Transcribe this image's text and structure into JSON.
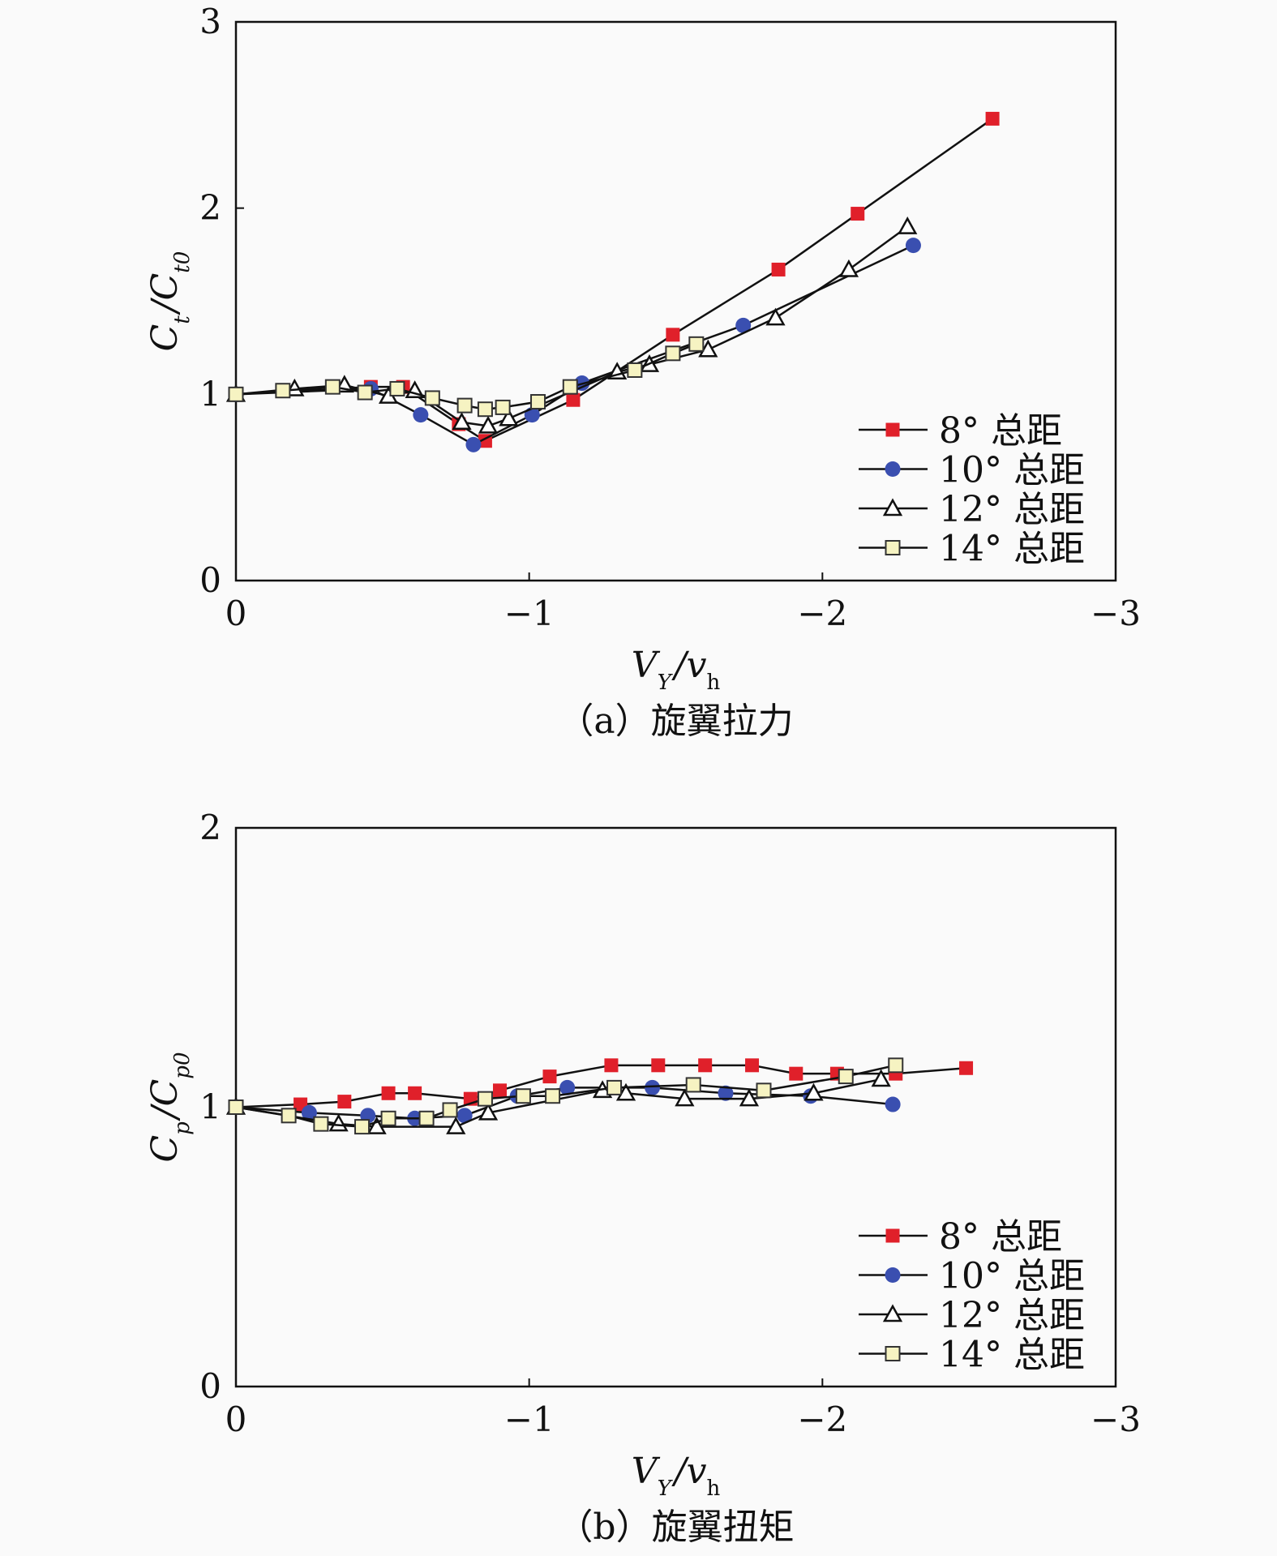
{
  "colors": {
    "s8": "#e0202a",
    "s10": "#3a4fb0",
    "s12": "#ffffff",
    "s14": "#f6f3c2",
    "axis": "#111111"
  },
  "chart_data": [
    {
      "type": "line",
      "caption": "（a）旋翼拉力",
      "xlabel": {
        "main": "V",
        "sub": "Y",
        "sep": "/",
        "main2": "v",
        "sub2": "h"
      },
      "ylabel": {
        "main": "C",
        "sub": "t",
        "sep": "/",
        "main2": "C",
        "sub2": "t0"
      },
      "xlim": [
        0,
        -3
      ],
      "ylim": [
        0,
        3
      ],
      "xticks": [
        {
          "v": 0,
          "label": "0"
        },
        {
          "v": -1,
          "label": "−1"
        },
        {
          "v": -2,
          "label": "−2"
        },
        {
          "v": -3,
          "label": "−3"
        }
      ],
      "yticks": [
        {
          "v": 0,
          "label": "0"
        },
        {
          "v": 1,
          "label": "1"
        },
        {
          "v": 2,
          "label": "2"
        },
        {
          "v": 3,
          "label": "3"
        }
      ],
      "legend_position": "bottom-right",
      "series": [
        {
          "name": "8° 总距",
          "marker": "square-filled",
          "color": "#e0202a",
          "x": [
            0,
            -0.46,
            -0.57,
            -0.76,
            -0.85,
            -1.15,
            -1.49,
            -1.85,
            -2.12,
            -2.58
          ],
          "y": [
            1.0,
            1.04,
            1.04,
            0.84,
            0.75,
            0.97,
            1.32,
            1.67,
            1.97,
            2.48
          ]
        },
        {
          "name": "10° 总距",
          "marker": "circle-filled",
          "color": "#3a4fb0",
          "x": [
            0,
            -0.46,
            -0.63,
            -0.81,
            -1.01,
            -1.18,
            -1.73,
            -2.31
          ],
          "y": [
            1.0,
            1.03,
            0.89,
            0.73,
            0.89,
            1.06,
            1.37,
            1.8
          ]
        },
        {
          "name": "12° 总距",
          "marker": "triangle-open",
          "color": "#ffffff",
          "x": [
            0,
            -0.2,
            -0.37,
            -0.52,
            -0.61,
            -0.77,
            -0.86,
            -0.93,
            -1.3,
            -1.41,
            -1.61,
            -1.84,
            -2.09,
            -2.29
          ],
          "y": [
            1.0,
            1.03,
            1.05,
            0.99,
            1.02,
            0.85,
            0.83,
            0.87,
            1.12,
            1.16,
            1.24,
            1.41,
            1.67,
            1.9
          ]
        },
        {
          "name": "14° 总距",
          "marker": "square-open",
          "color": "#f6f3c2",
          "x": [
            0,
            -0.16,
            -0.33,
            -0.44,
            -0.55,
            -0.67,
            -0.78,
            -0.85,
            -0.91,
            -1.03,
            -1.14,
            -1.36,
            -1.49,
            -1.57
          ],
          "y": [
            1.0,
            1.02,
            1.04,
            1.01,
            1.03,
            0.98,
            0.94,
            0.92,
            0.93,
            0.96,
            1.04,
            1.13,
            1.22,
            1.27
          ]
        }
      ]
    },
    {
      "type": "line",
      "caption": "（b）旋翼扭矩",
      "xlabel": {
        "main": "V",
        "sub": "Y",
        "sep": "/",
        "main2": "v",
        "sub2": "h"
      },
      "ylabel": {
        "main": "C",
        "sub": "p",
        "sep": "/",
        "main2": "C",
        "sub2": "p0"
      },
      "xlim": [
        0,
        -3
      ],
      "ylim": [
        0,
        2
      ],
      "xticks": [
        {
          "v": 0,
          "label": "0"
        },
        {
          "v": -1,
          "label": "−1"
        },
        {
          "v": -2,
          "label": "−2"
        },
        {
          "v": -3,
          "label": "−3"
        }
      ],
      "yticks": [
        {
          "v": 0,
          "label": "0"
        },
        {
          "v": 1,
          "label": "1"
        },
        {
          "v": 2,
          "label": "2"
        }
      ],
      "legend_position": "bottom-right",
      "series": [
        {
          "name": "8° 总距",
          "marker": "square-filled",
          "color": "#e0202a",
          "x": [
            0,
            -0.22,
            -0.37,
            -0.52,
            -0.61,
            -0.8,
            -0.9,
            -1.07,
            -1.28,
            -1.44,
            -1.6,
            -1.76,
            -1.91,
            -2.05,
            -2.25,
            -2.49
          ],
          "y": [
            1.0,
            1.01,
            1.02,
            1.05,
            1.05,
            1.03,
            1.06,
            1.11,
            1.15,
            1.15,
            1.15,
            1.15,
            1.12,
            1.12,
            1.12,
            1.14
          ]
        },
        {
          "name": "10° 总距",
          "marker": "circle-filled",
          "color": "#3a4fb0",
          "x": [
            0,
            -0.25,
            -0.45,
            -0.61,
            -0.78,
            -0.96,
            -1.13,
            -1.42,
            -1.67,
            -1.96,
            -2.24
          ],
          "y": [
            1.0,
            0.98,
            0.97,
            0.96,
            0.97,
            1.04,
            1.07,
            1.07,
            1.05,
            1.04,
            1.01
          ]
        },
        {
          "name": "12° 总距",
          "marker": "triangle-open",
          "color": "#ffffff",
          "x": [
            0,
            -0.35,
            -0.48,
            -0.75,
            -0.86,
            -1.25,
            -1.33,
            -1.53,
            -1.75,
            -1.97,
            -2.2
          ],
          "y": [
            1.0,
            0.94,
            0.93,
            0.93,
            0.98,
            1.06,
            1.05,
            1.03,
            1.03,
            1.05,
            1.1
          ]
        },
        {
          "name": "14° 总距",
          "marker": "square-open",
          "color": "#f6f3c2",
          "x": [
            0,
            -0.18,
            -0.29,
            -0.43,
            -0.52,
            -0.65,
            -0.73,
            -0.85,
            -0.98,
            -1.08,
            -1.29,
            -1.56,
            -1.8,
            -2.08,
            -2.25
          ],
          "y": [
            1.0,
            0.97,
            0.94,
            0.93,
            0.96,
            0.96,
            0.99,
            1.03,
            1.04,
            1.04,
            1.07,
            1.08,
            1.06,
            1.11,
            1.15
          ]
        }
      ]
    }
  ]
}
